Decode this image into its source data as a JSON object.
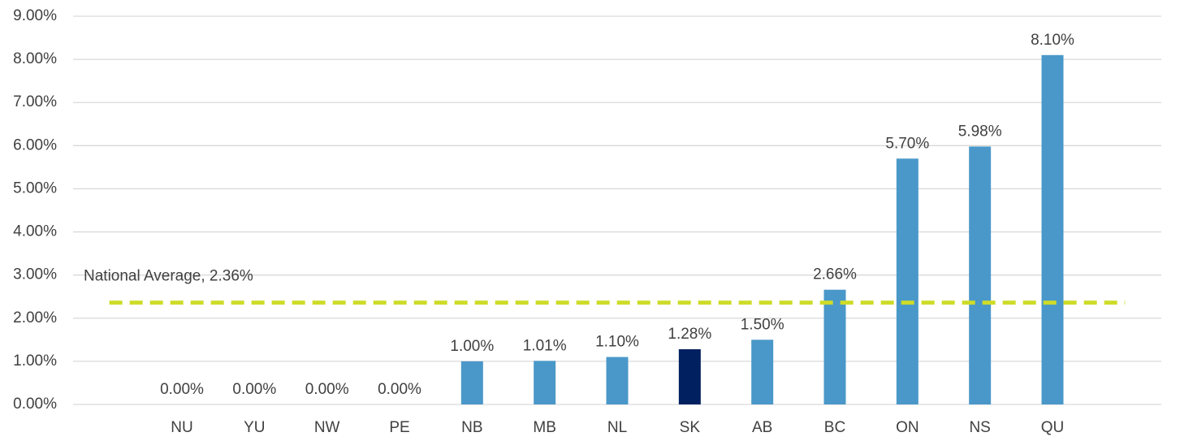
{
  "chart_data": {
    "type": "bar",
    "categories": [
      "NU",
      "YU",
      "NW",
      "PE",
      "NB",
      "MB",
      "NL",
      "SK",
      "AB",
      "BC",
      "ON",
      "NS",
      "QU"
    ],
    "values": [
      0,
      0,
      0,
      0,
      1.0,
      1.01,
      1.1,
      1.28,
      1.5,
      2.66,
      5.7,
      5.98,
      8.1
    ],
    "value_labels": [
      "0.00%",
      "0.00%",
      "0.00%",
      "0.00%",
      "1.00%",
      "1.01%",
      "1.10%",
      "1.28%",
      "1.50%",
      "2.66%",
      "5.70%",
      "5.98%",
      "8.10%"
    ],
    "colors": [
      "#4a98c9",
      "#4a98c9",
      "#4a98c9",
      "#4a98c9",
      "#4a98c9",
      "#4a98c9",
      "#4a98c9",
      "#002060",
      "#4a98c9",
      "#4a98c9",
      "#4a98c9",
      "#4a98c9",
      "#4a98c9"
    ],
    "ylim": [
      0,
      9
    ],
    "yticks": [
      {
        "value": 0,
        "label": "0.00%"
      },
      {
        "value": 1,
        "label": "1.00%"
      },
      {
        "value": 2,
        "label": "2.00%"
      },
      {
        "value": 3,
        "label": "3.00%"
      },
      {
        "value": 4,
        "label": "4.00%"
      },
      {
        "value": 5,
        "label": "5.00%"
      },
      {
        "value": 6,
        "label": "6.00%"
      },
      {
        "value": 7,
        "label": "7.00%"
      },
      {
        "value": 8,
        "label": "8.00%"
      },
      {
        "value": 9,
        "label": "9.00%"
      }
    ],
    "grid": true,
    "reference_line": {
      "value": 2.36,
      "label": "National Average, 2.36%",
      "color": "#cddc29"
    }
  }
}
